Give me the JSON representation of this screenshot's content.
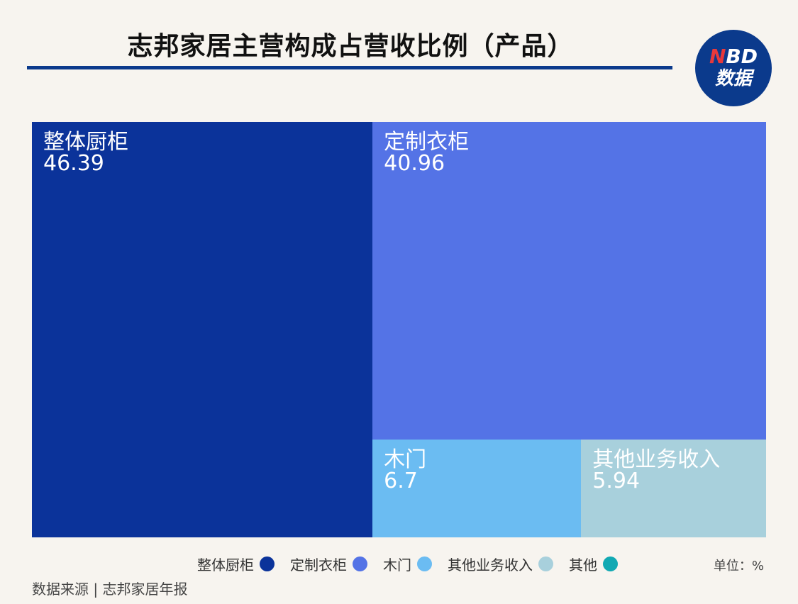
{
  "title": "志邦家居主营构成占营收比例（产品）",
  "logo": {
    "line1_n": "N",
    "line1_rest": "BD",
    "line2": "数据"
  },
  "chart_data": {
    "type": "treemap",
    "title": "志邦家居主营构成占营收比例（产品）",
    "unit": "%",
    "items": [
      {
        "name": "整体厨柜",
        "value": 46.39,
        "value_label": "46.39",
        "color": "#0b339a"
      },
      {
        "name": "定制衣柜",
        "value": 40.96,
        "value_label": "40.96",
        "color": "#5473e6"
      },
      {
        "name": "木门",
        "value": 6.7,
        "value_label": "6.7",
        "color": "#6bbcf2"
      },
      {
        "name": "其他业务收入",
        "value": 5.94,
        "value_label": "5.94",
        "color": "#a8d0dc"
      }
    ],
    "legend": [
      {
        "name": "整体厨柜",
        "color": "#0b339a"
      },
      {
        "name": "定制衣柜",
        "color": "#5473e6"
      },
      {
        "name": "木门",
        "color": "#6bbcf2"
      },
      {
        "name": "其他业务收入",
        "color": "#a8d0dc"
      },
      {
        "name": "其他",
        "color": "#11a9b3"
      }
    ]
  },
  "unit_label": "单位：%",
  "source": "数据来源 | 志邦家居年报"
}
